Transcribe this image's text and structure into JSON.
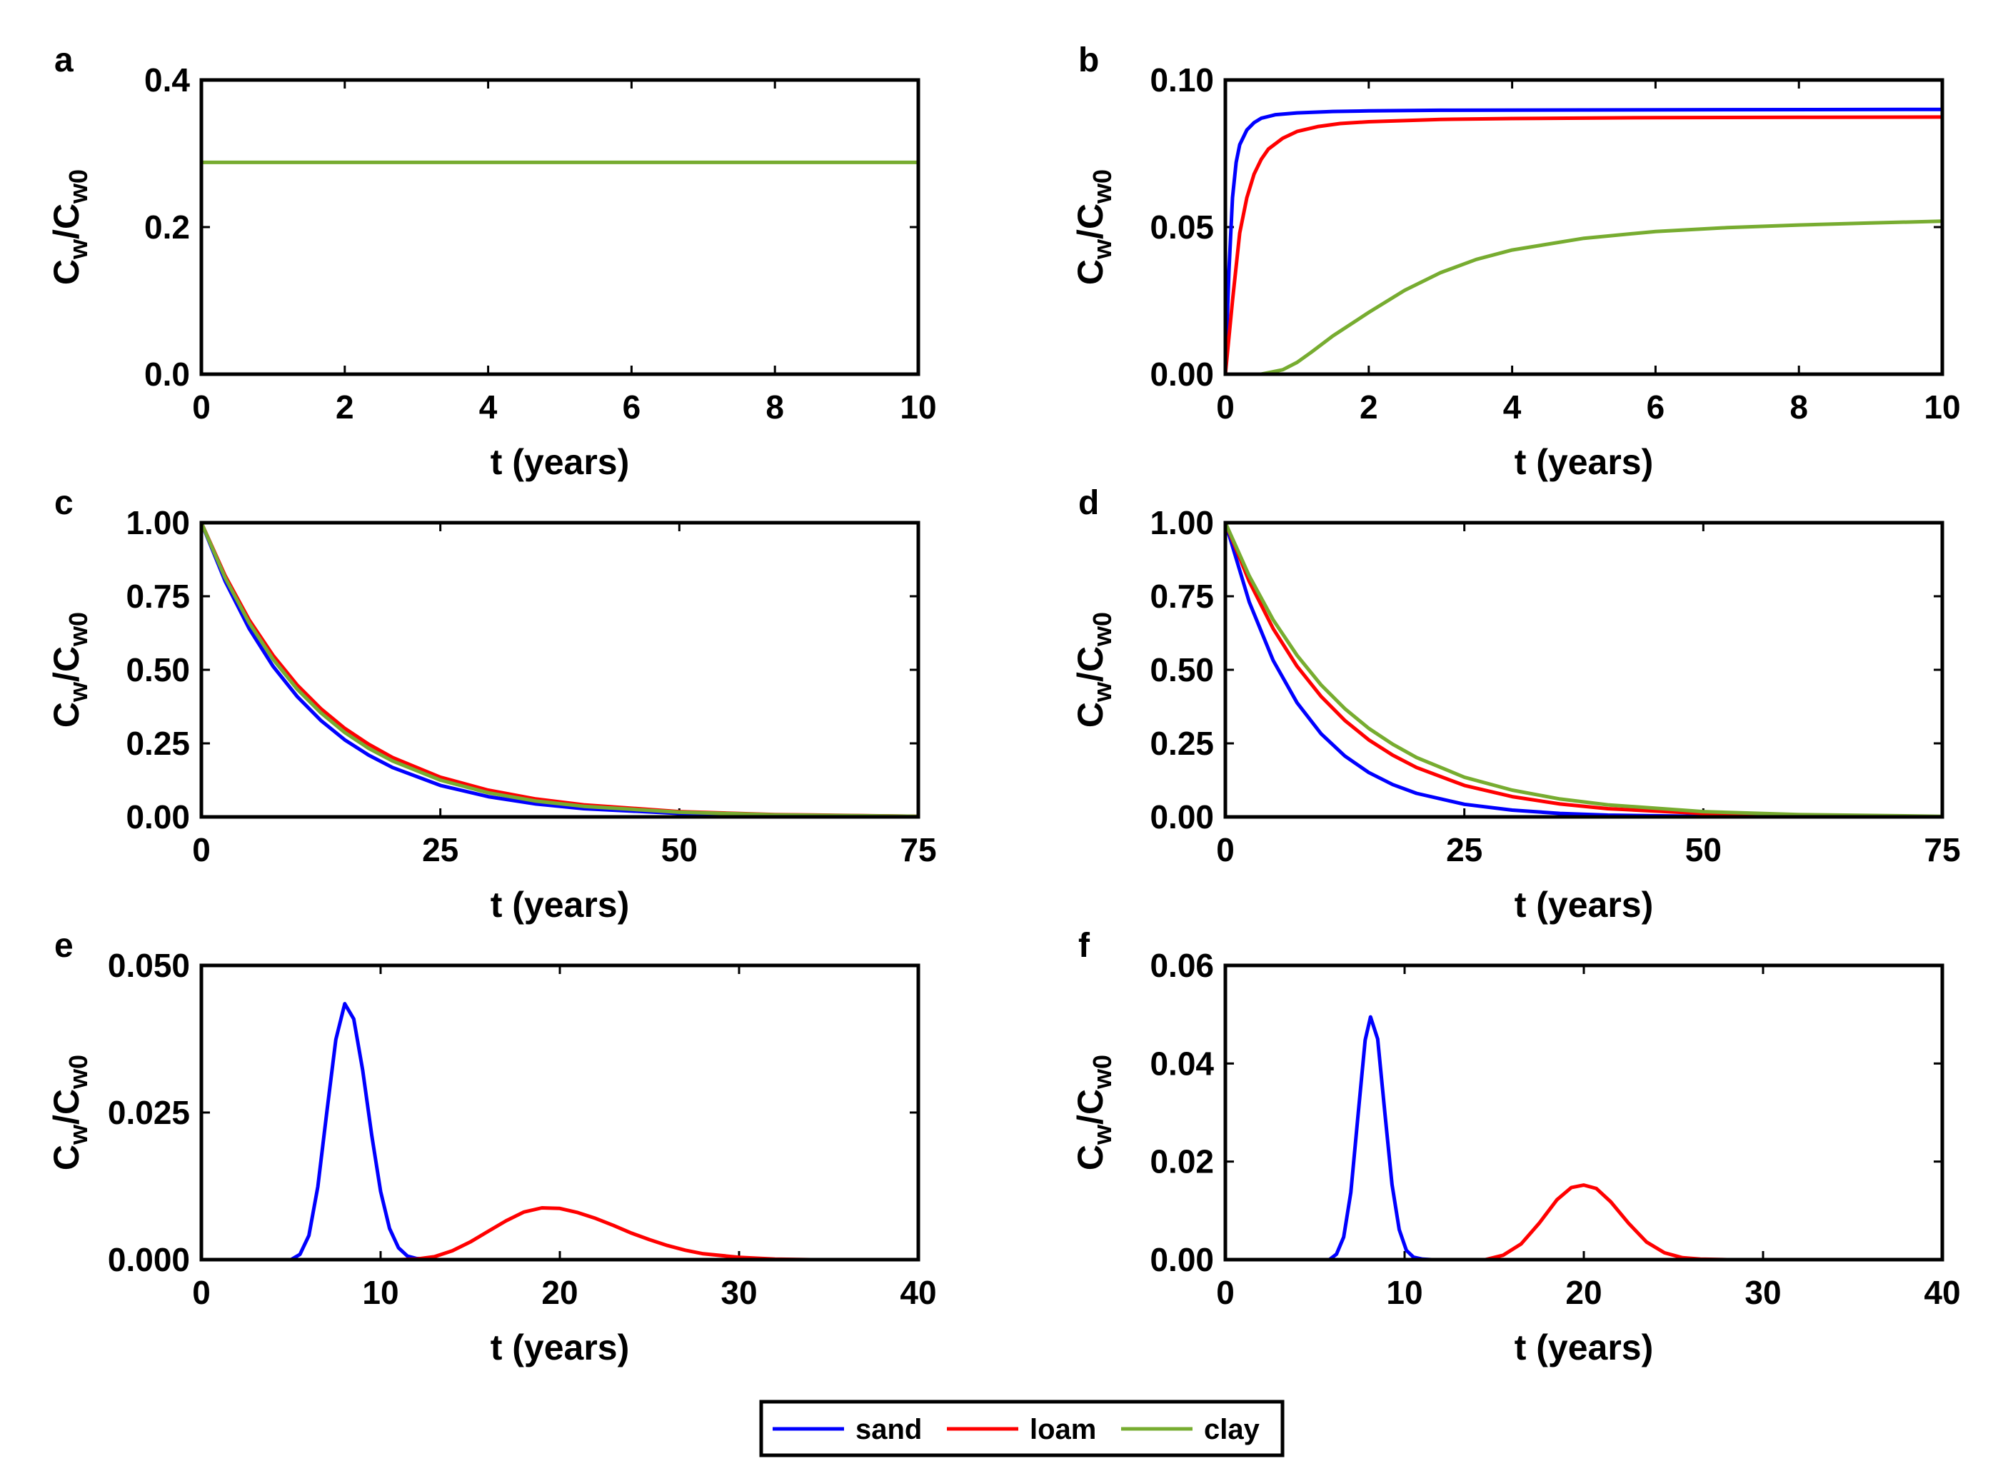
{
  "colors": {
    "sand": "#0000ff",
    "loam": "#ff0000",
    "clay": "#77ac30",
    "axis": "#000000"
  },
  "legend": {
    "entries": [
      {
        "key": "sand",
        "label": "sand"
      },
      {
        "key": "loam",
        "label": "loam"
      },
      {
        "key": "clay",
        "label": "clay"
      }
    ]
  },
  "chart_data": [
    {
      "id": "a",
      "type": "line",
      "panel_label": "a",
      "xlabel": "t (years)",
      "ylabel_main": "C",
      "ylabel_sub1": "w",
      "ylabel_mid": "/C",
      "ylabel_sub2": "w0",
      "xlim": [
        0,
        10
      ],
      "ylim": [
        0,
        0.4
      ],
      "xticks": [
        0,
        2,
        4,
        6,
        8,
        10
      ],
      "xtick_labels": [
        "0",
        "2",
        "4",
        "6",
        "8",
        "10"
      ],
      "yticks": [
        0,
        0.2,
        0.4
      ],
      "ytick_labels": [
        "0.0",
        "0.2",
        "0.4"
      ],
      "series": [
        {
          "name": "clay",
          "color_key": "clay",
          "x": [
            0,
            10
          ],
          "y": [
            0.288,
            0.288
          ]
        }
      ]
    },
    {
      "id": "b",
      "type": "line",
      "panel_label": "b",
      "xlabel": "t (years)",
      "ylabel_main": "C",
      "ylabel_sub1": "w",
      "ylabel_mid": "/C",
      "ylabel_sub2": "w0",
      "xlim": [
        0,
        10
      ],
      "ylim": [
        0,
        0.1
      ],
      "xticks": [
        0,
        2,
        4,
        6,
        8,
        10
      ],
      "xtick_labels": [
        "0",
        "2",
        "4",
        "6",
        "8",
        "10"
      ],
      "yticks": [
        0,
        0.05,
        0.1
      ],
      "ytick_labels": [
        "0.00",
        "0.05",
        "0.10"
      ],
      "series": [
        {
          "name": "sand",
          "color_key": "sand",
          "x": [
            0,
            0.05,
            0.1,
            0.15,
            0.2,
            0.3,
            0.4,
            0.5,
            0.7,
            1.0,
            1.5,
            2,
            3,
            5,
            7,
            10
          ],
          "y": [
            0,
            0.035,
            0.06,
            0.072,
            0.078,
            0.083,
            0.0855,
            0.087,
            0.0882,
            0.0888,
            0.0893,
            0.0895,
            0.0897,
            0.0898,
            0.0899,
            0.09
          ]
        },
        {
          "name": "loam",
          "color_key": "loam",
          "x": [
            0,
            0.1,
            0.2,
            0.3,
            0.4,
            0.5,
            0.6,
            0.8,
            1.0,
            1.3,
            1.6,
            2,
            3,
            4,
            6,
            8,
            10
          ],
          "y": [
            0,
            0.025,
            0.048,
            0.06,
            0.068,
            0.073,
            0.0765,
            0.0802,
            0.0825,
            0.0842,
            0.0852,
            0.0858,
            0.0866,
            0.0869,
            0.0872,
            0.0873,
            0.0874
          ]
        },
        {
          "name": "clay",
          "color_key": "clay",
          "x": [
            0,
            0.5,
            0.8,
            1.0,
            1.2,
            1.5,
            2,
            2.5,
            3,
            3.5,
            4,
            5,
            6,
            7,
            8,
            9,
            10
          ],
          "y": [
            0,
            0,
            0.0015,
            0.004,
            0.0075,
            0.013,
            0.021,
            0.0285,
            0.0345,
            0.039,
            0.0422,
            0.0462,
            0.0485,
            0.0498,
            0.0507,
            0.0514,
            0.052
          ]
        }
      ]
    },
    {
      "id": "c",
      "type": "line",
      "panel_label": "c",
      "xlabel": "t (years)",
      "ylabel_main": "C",
      "ylabel_sub1": "w",
      "ylabel_mid": "/C",
      "ylabel_sub2": "w0",
      "xlim": [
        0,
        75
      ],
      "ylim": [
        0,
        1
      ],
      "xticks": [
        0,
        25,
        50,
        75
      ],
      "xtick_labels": [
        "0",
        "25",
        "50",
        "75"
      ],
      "yticks": [
        0,
        0.25,
        0.5,
        0.75,
        1
      ],
      "ytick_labels": [
        "0.00",
        "0.25",
        "0.50",
        "0.75",
        "1.00"
      ],
      "series": [
        {
          "name": "sand",
          "color_key": "sand",
          "x": [
            0,
            2.5,
            5,
            7.5,
            10,
            12.5,
            15,
            17.5,
            20,
            25,
            30,
            35,
            40,
            50,
            60,
            75
          ],
          "y": [
            1,
            0.8,
            0.64,
            0.512,
            0.41,
            0.328,
            0.262,
            0.21,
            0.168,
            0.107,
            0.069,
            0.044,
            0.028,
            0.012,
            0.005,
            0.001
          ]
        },
        {
          "name": "loam",
          "color_key": "loam",
          "x": [
            0,
            2.5,
            5,
            7.5,
            10,
            12.5,
            15,
            17.5,
            20,
            25,
            30,
            35,
            40,
            50,
            60,
            75
          ],
          "y": [
            1,
            0.819,
            0.67,
            0.549,
            0.449,
            0.368,
            0.301,
            0.247,
            0.202,
            0.135,
            0.091,
            0.061,
            0.041,
            0.018,
            0.008,
            0.002
          ]
        },
        {
          "name": "clay",
          "color_key": "clay",
          "x": [
            0,
            2.5,
            5,
            7.5,
            10,
            12.5,
            15,
            17.5,
            20,
            25,
            30,
            35,
            40,
            50,
            60,
            75
          ],
          "y": [
            1,
            0.812,
            0.66,
            0.536,
            0.435,
            0.354,
            0.287,
            0.233,
            0.19,
            0.125,
            0.082,
            0.054,
            0.036,
            0.016,
            0.007,
            0.002
          ]
        }
      ]
    },
    {
      "id": "d",
      "type": "line",
      "panel_label": "d",
      "xlabel": "t (years)",
      "ylabel_main": "C",
      "ylabel_sub1": "w",
      "ylabel_mid": "/C",
      "ylabel_sub2": "w0",
      "xlim": [
        0,
        75
      ],
      "ylim": [
        0,
        1
      ],
      "xticks": [
        0,
        25,
        50,
        75
      ],
      "xtick_labels": [
        "0",
        "25",
        "50",
        "75"
      ],
      "yticks": [
        0,
        0.25,
        0.5,
        0.75,
        1
      ],
      "ytick_labels": [
        "0.00",
        "0.25",
        "0.50",
        "0.75",
        "1.00"
      ],
      "series": [
        {
          "name": "sand",
          "color_key": "sand",
          "x": [
            0,
            2.5,
            5,
            7.5,
            10,
            12.5,
            15,
            17.5,
            20,
            25,
            30,
            35,
            40,
            50,
            60,
            75
          ],
          "y": [
            1,
            0.73,
            0.532,
            0.388,
            0.283,
            0.207,
            0.151,
            0.11,
            0.08,
            0.043,
            0.023,
            0.012,
            0.006,
            0.002,
            0.0005,
            0
          ]
        },
        {
          "name": "loam",
          "color_key": "loam",
          "x": [
            0,
            2.5,
            5,
            7.5,
            10,
            12.5,
            15,
            17.5,
            20,
            25,
            30,
            35,
            40,
            50,
            60,
            75
          ],
          "y": [
            1,
            0.8,
            0.64,
            0.512,
            0.41,
            0.328,
            0.262,
            0.21,
            0.168,
            0.107,
            0.069,
            0.044,
            0.028,
            0.012,
            0.005,
            0.001
          ]
        },
        {
          "name": "clay",
          "color_key": "clay",
          "x": [
            0,
            2.5,
            5,
            7.5,
            10,
            12.5,
            15,
            17.5,
            20,
            25,
            30,
            35,
            40,
            50,
            60,
            75
          ],
          "y": [
            1,
            0.819,
            0.67,
            0.549,
            0.449,
            0.368,
            0.301,
            0.247,
            0.202,
            0.135,
            0.091,
            0.061,
            0.041,
            0.018,
            0.008,
            0.002
          ]
        }
      ]
    },
    {
      "id": "e",
      "type": "line",
      "panel_label": "e",
      "xlabel": "t (years)",
      "ylabel_main": "C",
      "ylabel_sub1": "w",
      "ylabel_mid": "/C",
      "ylabel_sub2": "w0",
      "xlim": [
        0,
        40
      ],
      "ylim": [
        0,
        0.05
      ],
      "xticks": [
        0,
        10,
        20,
        30,
        40
      ],
      "xtick_labels": [
        "0",
        "10",
        "20",
        "30",
        "40"
      ],
      "yticks": [
        0,
        0.025,
        0.05
      ],
      "ytick_labels": [
        "0.000",
        "0.025",
        "0.050"
      ],
      "series": [
        {
          "name": "sand",
          "color_key": "sand",
          "x": [
            0,
            5,
            5.5,
            6,
            6.5,
            7,
            7.5,
            8,
            8.5,
            9,
            9.5,
            10,
            10.5,
            11,
            11.5,
            12,
            13,
            40
          ],
          "y": [
            0,
            0,
            0.0009,
            0.0041,
            0.0124,
            0.0251,
            0.0374,
            0.0435,
            0.0409,
            0.0322,
            0.0212,
            0.0116,
            0.0053,
            0.002,
            0.0006,
            0.0002,
            0,
            0
          ]
        },
        {
          "name": "loam",
          "color_key": "loam",
          "x": [
            0,
            11,
            12,
            13,
            14,
            15,
            16,
            17,
            18,
            19,
            20,
            21,
            22,
            23,
            24,
            25,
            26,
            27,
            28,
            30,
            32,
            34,
            40
          ],
          "y": [
            0,
            0,
            0.0001,
            0.0005,
            0.0015,
            0.003,
            0.0048,
            0.0066,
            0.0081,
            0.0088,
            0.0087,
            0.008,
            0.007,
            0.0058,
            0.0045,
            0.0034,
            0.0024,
            0.0016,
            0.001,
            0.0004,
            0.0001,
            0,
            0
          ]
        }
      ]
    },
    {
      "id": "f",
      "type": "line",
      "panel_label": "f",
      "xlabel": "t (years)",
      "ylabel_main": "C",
      "ylabel_sub1": "w",
      "ylabel_mid": "/C",
      "ylabel_sub2": "w0",
      "xlim": [
        0,
        40
      ],
      "ylim": [
        0,
        0.06
      ],
      "xticks": [
        0,
        10,
        20,
        30,
        40
      ],
      "xtick_labels": [
        "0",
        "10",
        "20",
        "30",
        "40"
      ],
      "yticks": [
        0,
        0.02,
        0.04,
        0.06
      ],
      "ytick_labels": [
        "0.00",
        "0.02",
        "0.04",
        "0.06"
      ],
      "series": [
        {
          "name": "sand",
          "color_key": "sand",
          "x": [
            0,
            5.8,
            6.2,
            6.6,
            7,
            7.4,
            7.8,
            8.1,
            8.5,
            8.9,
            9.3,
            9.7,
            10.1,
            10.5,
            11,
            11.5,
            40
          ],
          "y": [
            0,
            0,
            0.0011,
            0.0046,
            0.0137,
            0.0293,
            0.0448,
            0.0495,
            0.045,
            0.0299,
            0.0153,
            0.0061,
            0.0019,
            0.0005,
            0.0001,
            0,
            0
          ]
        },
        {
          "name": "loam",
          "color_key": "loam",
          "x": [
            0,
            14.5,
            15.5,
            16.5,
            17.5,
            18.5,
            19.3,
            20,
            20.7,
            21.5,
            22.5,
            23.5,
            24.5,
            25.5,
            26.5,
            28,
            40
          ],
          "y": [
            0,
            0,
            0.0009,
            0.0032,
            0.0074,
            0.0122,
            0.0147,
            0.0152,
            0.0145,
            0.0118,
            0.0074,
            0.0036,
            0.0014,
            0.0004,
            0.0001,
            0,
            0
          ]
        }
      ]
    }
  ]
}
